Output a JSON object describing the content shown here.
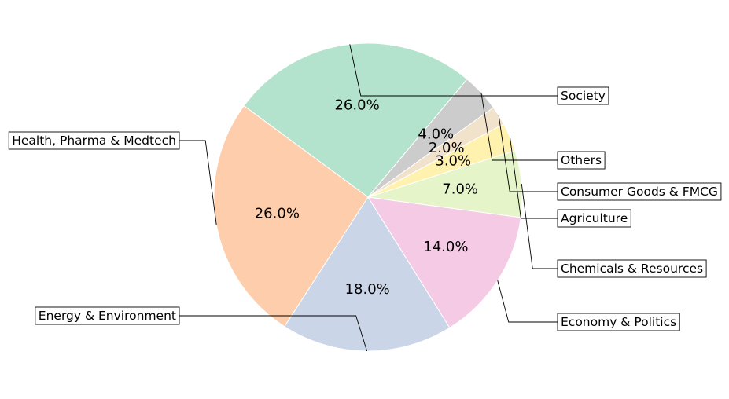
{
  "chart_data": {
    "type": "pie",
    "title": "",
    "slices": [
      {
        "label": "Society",
        "value": 26.0,
        "pct_label": "26.0%",
        "color": "#b3e2cd"
      },
      {
        "label": "Health, Pharma & Medtech",
        "value": 26.0,
        "pct_label": "26.0%",
        "color": "#fdcdac"
      },
      {
        "label": "Energy & Environment",
        "value": 18.0,
        "pct_label": "18.0%",
        "color": "#cbd5e8"
      },
      {
        "label": "Economy & Politics",
        "value": 14.0,
        "pct_label": "14.0%",
        "color": "#f4cae4"
      },
      {
        "label": "Chemicals & Resources",
        "value": 7.0,
        "pct_label": "7.0%",
        "color": "#e6f5c9"
      },
      {
        "label": "Agriculture",
        "value": 3.0,
        "pct_label": "3.0%",
        "color": "#fff2ae"
      },
      {
        "label": "Consumer Goods & FMCG",
        "value": 2.0,
        "pct_label": "2.0%",
        "color": "#f1e2cc"
      },
      {
        "label": "Others",
        "value": 4.0,
        "pct_label": "4.0%",
        "color": "#cccccc"
      }
    ]
  }
}
